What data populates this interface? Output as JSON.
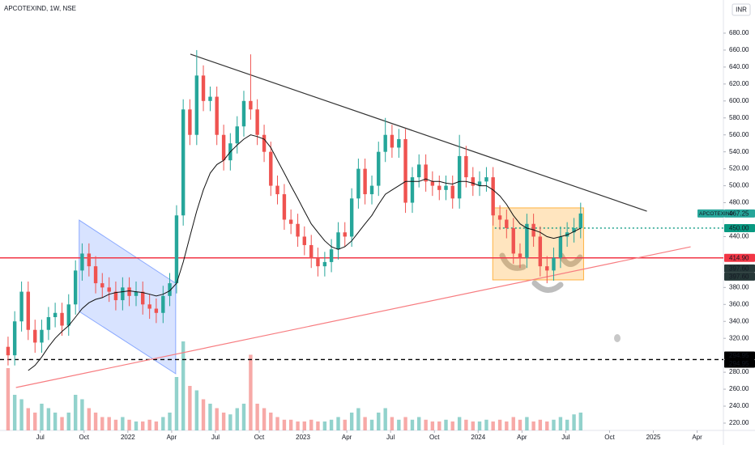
{
  "chart_data": {
    "type": "candlestick",
    "title": "APCOTEXIND, 1W, NSE",
    "currency": "INR",
    "symbol": "APCOTEXIND",
    "up_color": "#26a69a",
    "down_color": "#ef5350",
    "grid": false,
    "xlim": [
      2021.27,
      2025.4
    ],
    "ylim": [
      211.4,
      719.1
    ],
    "xticks": [
      {
        "value": 2021.5,
        "label": "Jul"
      },
      {
        "value": 2021.75,
        "label": "Oct"
      },
      2022,
      {
        "value": 2022.25,
        "label": "Apr"
      },
      {
        "value": 2022.5,
        "label": "Jul"
      },
      {
        "value": 2022.75,
        "label": "Oct"
      },
      2023,
      {
        "value": 2023.25,
        "label": "Apr"
      },
      {
        "value": 2023.5,
        "label": "Jul"
      },
      {
        "value": 2023.75,
        "label": "Oct"
      },
      2024,
      {
        "value": 2024.25,
        "label": "Apr"
      },
      {
        "value": 2024.5,
        "label": "Jul"
      },
      {
        "value": 2024.75,
        "label": "Oct"
      },
      2025,
      {
        "value": 2025.25,
        "label": "Apr"
      }
    ],
    "yticks": [
      {
        "value": 680,
        "label": "680.00"
      },
      {
        "value": 660,
        "label": "660.00"
      },
      {
        "value": 640,
        "label": "640.00"
      },
      {
        "value": 620,
        "label": "620.00"
      },
      {
        "value": 600,
        "label": "600.00"
      },
      {
        "value": 580,
        "label": "580.00"
      },
      {
        "value": 560,
        "label": "560.00"
      },
      {
        "value": 540,
        "label": "540.00"
      },
      {
        "value": 520,
        "label": "520.00"
      },
      {
        "value": 500,
        "label": "500.00"
      },
      {
        "value": 480,
        "label": "480.00"
      },
      {
        "value": 440,
        "label": "440.00"
      },
      {
        "value": 380,
        "label": "380.00"
      },
      {
        "value": 360,
        "label": "360.00"
      },
      {
        "value": 340,
        "label": "340.00"
      },
      {
        "value": 320,
        "label": "320.00"
      },
      {
        "value": 280,
        "label": "280.00"
      },
      {
        "value": 260,
        "label": "260.00"
      },
      {
        "value": 240,
        "label": "240.00"
      },
      {
        "value": 220,
        "label": "220.00"
      }
    ],
    "candles": {
      "x": [
        2021.316,
        2021.354,
        2021.393,
        2021.431,
        2021.47,
        2021.508,
        2021.547,
        2021.585,
        2021.624,
        2021.662,
        2021.701,
        2021.739,
        2021.778,
        2021.816,
        2021.854,
        2021.893,
        2021.931,
        2021.97,
        2022.008,
        2022.047,
        2022.085,
        2022.124,
        2022.162,
        2022.201,
        2022.239,
        2022.278,
        2022.316,
        2022.354,
        2022.393,
        2022.431,
        2022.47,
        2022.508,
        2022.547,
        2022.585,
        2022.624,
        2022.662,
        2022.701,
        2022.739,
        2022.778,
        2022.816,
        2022.854,
        2022.893,
        2022.931,
        2022.97,
        2023.008,
        2023.047,
        2023.085,
        2023.124,
        2023.162,
        2023.201,
        2023.239,
        2023.278,
        2023.316,
        2023.354,
        2023.393,
        2023.431,
        2023.47,
        2023.508,
        2023.547,
        2023.585,
        2023.624,
        2023.662,
        2023.701,
        2023.739,
        2023.778,
        2023.816,
        2023.854,
        2023.893,
        2023.931,
        2023.97,
        2024.008,
        2024.047,
        2024.085,
        2024.124,
        2024.162,
        2024.201,
        2024.239,
        2024.278,
        2024.316,
        2024.354,
        2024.393,
        2024.431,
        2024.47,
        2024.508,
        2024.547,
        2024.585
      ],
      "open": [
        310,
        300,
        340,
        375,
        330,
        315,
        330,
        345,
        350,
        335,
        360,
        400,
        420,
        405,
        385,
        380,
        375,
        365,
        380,
        370,
        375,
        360,
        355,
        350,
        370,
        385,
        465,
        590,
        560,
        630,
        600,
        605,
        560,
        530,
        550,
        570,
        600,
        590,
        560,
        540,
        500,
        490,
        460,
        455,
        440,
        430,
        415,
        405,
        410,
        425,
        445,
        440,
        485,
        520,
        490,
        500,
        540,
        560,
        545,
        555,
        480,
        510,
        525,
        505,
        500,
        495,
        500,
        485,
        535,
        510,
        500,
        505,
        510,
        465,
        460,
        450,
        420,
        415,
        455,
        440,
        405,
        400,
        415,
        440,
        445,
        450
      ],
      "high": [
        322,
        352,
        387,
        387,
        342,
        342,
        357,
        362,
        362,
        372,
        412,
        432,
        432,
        417,
        397,
        392,
        387,
        392,
        392,
        387,
        387,
        372,
        367,
        382,
        397,
        477,
        602,
        602,
        660,
        642,
        617,
        617,
        572,
        562,
        582,
        612,
        655,
        602,
        572,
        552,
        512,
        502,
        472,
        467,
        452,
        442,
        427,
        422,
        437,
        457,
        457,
        497,
        532,
        532,
        512,
        552,
        580,
        572,
        567,
        567,
        522,
        537,
        537,
        517,
        512,
        512,
        512,
        560,
        547,
        522,
        517,
        522,
        522,
        477,
        472,
        462,
        432,
        467,
        467,
        452,
        417,
        427,
        452,
        457,
        462,
        480
      ],
      "low": [
        288,
        288,
        328,
        318,
        303,
        303,
        318,
        333,
        323,
        323,
        348,
        388,
        393,
        373,
        368,
        363,
        353,
        353,
        358,
        358,
        348,
        343,
        338,
        338,
        358,
        373,
        453,
        548,
        548,
        588,
        588,
        548,
        518,
        518,
        538,
        558,
        578,
        548,
        528,
        488,
        478,
        448,
        443,
        428,
        418,
        403,
        393,
        393,
        398,
        413,
        428,
        428,
        473,
        478,
        478,
        488,
        528,
        533,
        533,
        468,
        468,
        498,
        493,
        488,
        483,
        483,
        473,
        473,
        498,
        488,
        488,
        493,
        453,
        448,
        438,
        408,
        403,
        403,
        428,
        393,
        385,
        388,
        403,
        428,
        433,
        438
      ],
      "close": [
        300,
        340,
        375,
        330,
        315,
        330,
        345,
        350,
        335,
        360,
        400,
        420,
        405,
        385,
        380,
        375,
        365,
        380,
        370,
        375,
        360,
        355,
        350,
        370,
        385,
        465,
        590,
        560,
        630,
        600,
        605,
        560,
        530,
        550,
        570,
        600,
        590,
        560,
        540,
        500,
        490,
        460,
        455,
        440,
        430,
        415,
        405,
        410,
        425,
        445,
        440,
        485,
        520,
        490,
        500,
        540,
        560,
        545,
        555,
        480,
        510,
        525,
        505,
        500,
        495,
        500,
        485,
        535,
        510,
        500,
        505,
        510,
        465,
        460,
        450,
        420,
        415,
        455,
        440,
        405,
        400,
        415,
        440,
        445,
        450,
        467.25
      ]
    },
    "volume": [
      70,
      40,
      35,
      25,
      20,
      30,
      25,
      20,
      15,
      20,
      40,
      35,
      25,
      20,
      15,
      15,
      12,
      15,
      12,
      10,
      10,
      12,
      10,
      15,
      20,
      60,
      100,
      50,
      45,
      35,
      30,
      25,
      20,
      18,
      25,
      30,
      85,
      30,
      25,
      20,
      15,
      12,
      12,
      10,
      10,
      12,
      10,
      10,
      12,
      15,
      12,
      20,
      25,
      15,
      12,
      20,
      25,
      15,
      12,
      15,
      12,
      15,
      12,
      10,
      10,
      12,
      10,
      15,
      12,
      10,
      10,
      12,
      10,
      12,
      10,
      15,
      12,
      15,
      10,
      12,
      10,
      12,
      15,
      12,
      18,
      20
    ],
    "ma": {
      "color": "#111111",
      "values": [
        null,
        null,
        null,
        282,
        288,
        298,
        310,
        320,
        328,
        335,
        345,
        355,
        362,
        366,
        368,
        372,
        374,
        375,
        376,
        375,
        374,
        372,
        370,
        372,
        376,
        385,
        410,
        440,
        470,
        495,
        515,
        525,
        530,
        540,
        548,
        555,
        560,
        558,
        555,
        545,
        530,
        515,
        500,
        485,
        470,
        455,
        445,
        435,
        428,
        425,
        428,
        435,
        445,
        455,
        465,
        478,
        490,
        495,
        500,
        505,
        505,
        505,
        508,
        505,
        505,
        503,
        502,
        505,
        505,
        503,
        500,
        500,
        495,
        488,
        478,
        465,
        455,
        450,
        448,
        445,
        440,
        438,
        440,
        442,
        446,
        450
      ]
    },
    "trendlines": [
      {
        "x": [
          2022.357,
          2024.963
        ],
        "y": [
          655.2,
          470
        ],
        "color": "#333333"
      },
      {
        "x": [
          2021.361,
          2025.213
        ],
        "y": [
          262,
          428
        ],
        "color": "#f77c80"
      }
    ],
    "channel": {
      "x": [
        2021.722,
        2022.273,
        2022.273,
        2021.722
      ],
      "y": [
        459.5,
        385,
        278.2,
        351.7
      ],
      "color": "#2962ff"
    },
    "box": {
      "x": [
        2024.083,
        2024.602
      ],
      "y": [
        388.9,
        473.9
      ],
      "color": "#ff9800"
    },
    "hlines": [
      {
        "value": 414.9,
        "color": "#f23645",
        "style": "solid"
      },
      {
        "value": 450,
        "color": "#089981",
        "style": "dotted",
        "from": 2024.095
      },
      {
        "value": 294.95,
        "color": "#000000",
        "style": "dashed"
      }
    ],
    "price_labels": [
      {
        "value": 467.25,
        "color": "#26a69a"
      },
      {
        "value": 450,
        "label": "450.00",
        "color": "#089981"
      },
      {
        "value": 414.9,
        "label": "414.90",
        "color": "#f23645"
      },
      {
        "value": 397.6,
        "label": "397.60",
        "color": "#263838"
      },
      {
        "value": 397.6,
        "label": "397.60",
        "color": "#263838"
      },
      {
        "value": 294.95,
        "label": "294.95",
        "color": "#000000"
      },
      {
        "value": 294.95,
        "label": "294.95",
        "color": "#000000"
      }
    ]
  }
}
